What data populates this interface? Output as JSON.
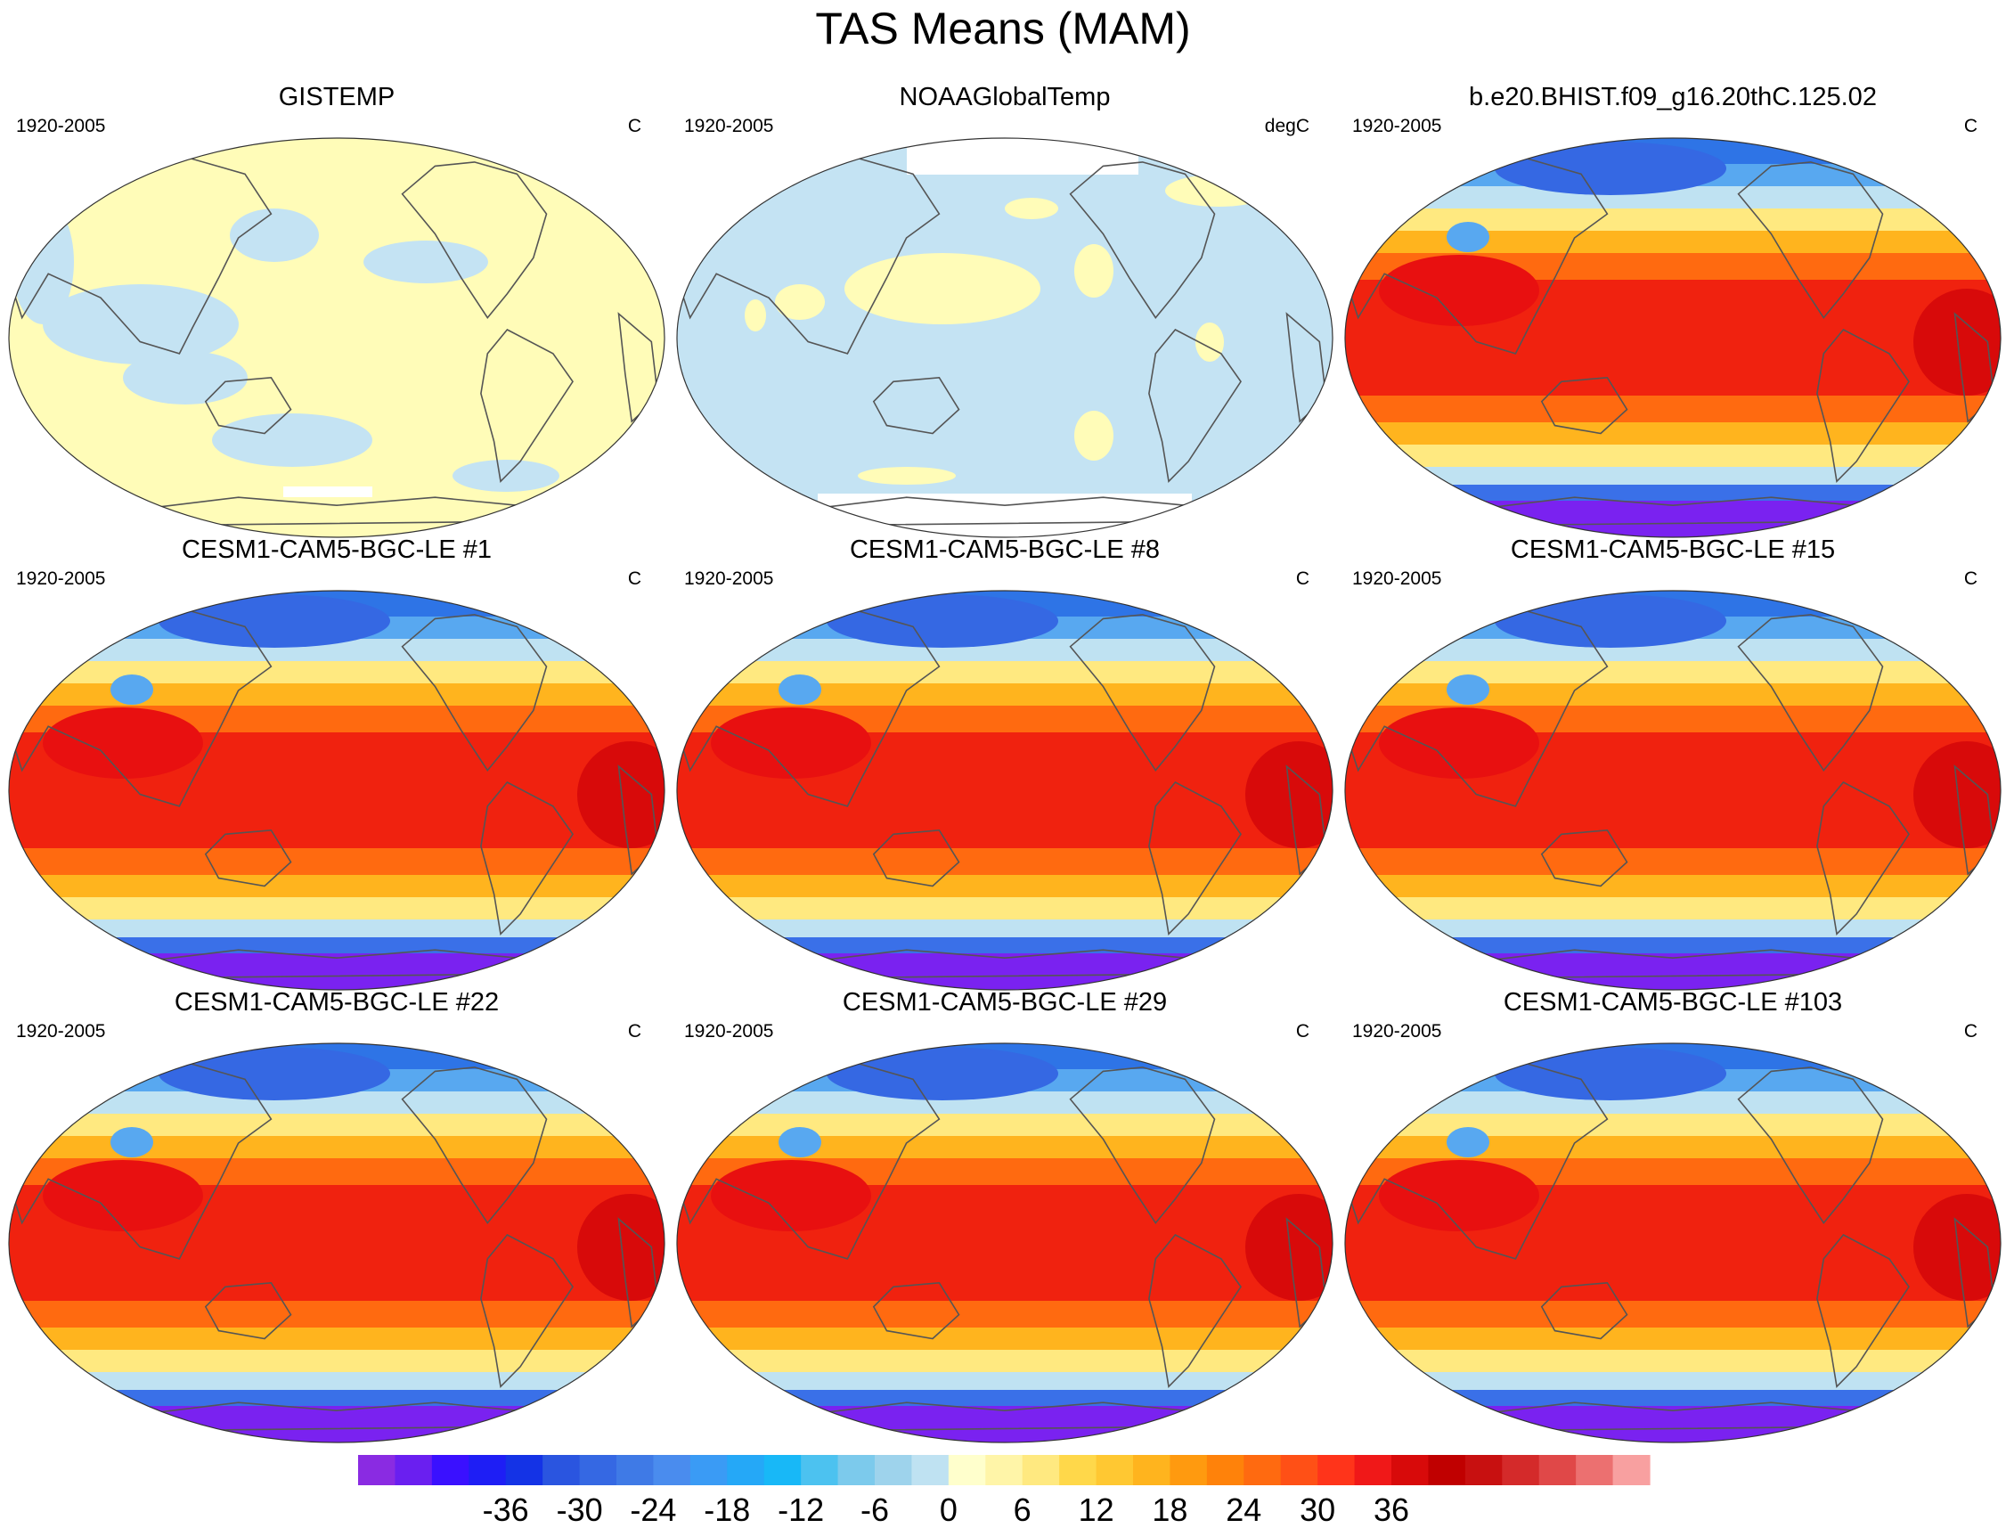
{
  "figure": {
    "title": "TAS Means (MAM)"
  },
  "panels": [
    {
      "title": "GISTEMP",
      "years": "1920-2005",
      "units": "C",
      "field": "anomaly-warm"
    },
    {
      "title": "NOAAGlobalTemp",
      "years": "1920-2005",
      "units": "degC",
      "field": "anomaly-cool"
    },
    {
      "title": "b.e20.BHIST.f09_g16.20thC.125.02",
      "years": "1920-2005",
      "units": "C",
      "field": "climatology"
    },
    {
      "title": "CESM1-CAM5-BGC-LE #1",
      "years": "1920-2005",
      "units": "C",
      "field": "climatology"
    },
    {
      "title": "CESM1-CAM5-BGC-LE #8",
      "years": "1920-2005",
      "units": "C",
      "field": "climatology"
    },
    {
      "title": "CESM1-CAM5-BGC-LE #15",
      "years": "1920-2005",
      "units": "C",
      "field": "climatology"
    },
    {
      "title": "CESM1-CAM5-BGC-LE #22",
      "years": "1920-2005",
      "units": "C",
      "field": "climatology"
    },
    {
      "title": "CESM1-CAM5-BGC-LE #29",
      "years": "1920-2005",
      "units": "C",
      "field": "climatology"
    },
    {
      "title": "CESM1-CAM5-BGC-LE #103",
      "years": "1920-2005",
      "units": "C",
      "field": "climatology"
    }
  ],
  "colorbar": {
    "tick_labels": [
      "-36",
      "-30",
      "-24",
      "-18",
      "-12",
      "-6",
      "0",
      "6",
      "12",
      "18",
      "24",
      "30",
      "36"
    ],
    "colors": [
      "#8a2be2",
      "#6a1ff0",
      "#3a10ff",
      "#1e1ef5",
      "#1433e6",
      "#2a55e0",
      "#3568e3",
      "#3f7ae6",
      "#4a8cee",
      "#3a9bf5",
      "#25a8f7",
      "#18b8f7",
      "#4cc2f0",
      "#7ccaec",
      "#9ed3ec",
      "#bfe2f2",
      "#ffffcc",
      "#fff5a8",
      "#ffe980",
      "#ffd84a",
      "#ffc832",
      "#ffb41e",
      "#ff9a0f",
      "#ff820a",
      "#ff6a10",
      "#ff5016",
      "#ff341a",
      "#f01818",
      "#d80a0a",
      "#c00000",
      "#c81010",
      "#d42a2a",
      "#e04848",
      "#ec7070",
      "#f8a0a0"
    ],
    "anomaly_warm_color": "#fffcb8",
    "anomaly_cool_color": "#c4e3f3"
  }
}
